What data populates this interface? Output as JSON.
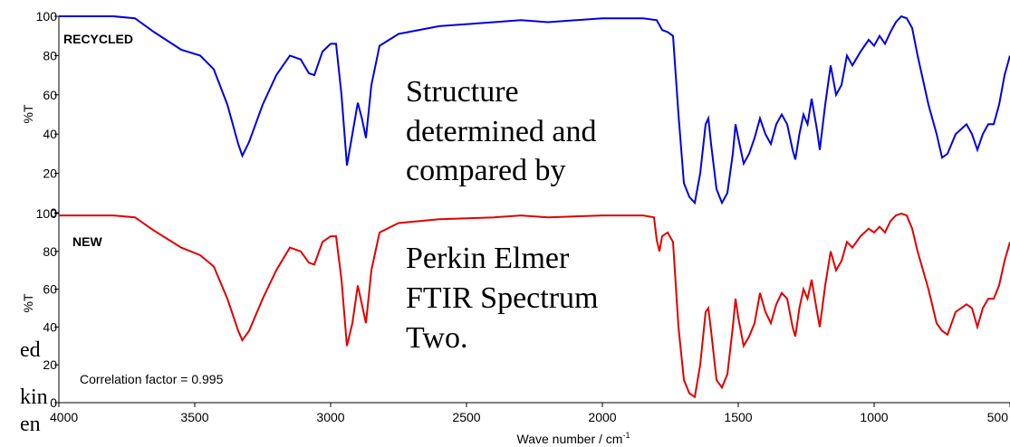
{
  "side_text": [
    "ed",
    "kin",
    "en"
  ],
  "annotation": {
    "lines_top": [
      "Structure",
      "determined and",
      "compared by"
    ],
    "lines_bottom": [
      "Perkin Elmer",
      "FTIR Spectrum",
      "Two."
    ]
  },
  "chart_data": {
    "type": "line",
    "xlabel": "Wave number / cm",
    "xlabel_sup": "-1",
    "xlim": [
      4000,
      500
    ],
    "x_ticks": [
      4000,
      3500,
      3000,
      2500,
      2000,
      1500,
      1000,
      500
    ],
    "x_tick_labels": [
      "4000",
      "3500",
      "3000",
      "2500",
      "2000",
      "1500",
      "1000",
      "500"
    ],
    "panels": [
      {
        "name": "RECYCLED",
        "ylabel": "%T",
        "ylim": [
          0,
          100
        ],
        "y_ticks": [
          0,
          20,
          40,
          60,
          80,
          100
        ],
        "y_tick_labels": [
          "0",
          "20",
          "40",
          "60",
          "80",
          "100"
        ],
        "color": "#0000e0",
        "points": [
          [
            4000,
            100
          ],
          [
            3800,
            100
          ],
          [
            3720,
            99
          ],
          [
            3650,
            92
          ],
          [
            3550,
            83
          ],
          [
            3480,
            80
          ],
          [
            3430,
            73
          ],
          [
            3380,
            55
          ],
          [
            3340,
            35
          ],
          [
            3325,
            29
          ],
          [
            3300,
            36
          ],
          [
            3250,
            55
          ],
          [
            3200,
            70
          ],
          [
            3150,
            80
          ],
          [
            3110,
            78
          ],
          [
            3080,
            71
          ],
          [
            3060,
            70
          ],
          [
            3030,
            82
          ],
          [
            3000,
            86
          ],
          [
            2980,
            86
          ],
          [
            2960,
            60
          ],
          [
            2940,
            24
          ],
          [
            2920,
            40
          ],
          [
            2900,
            56
          ],
          [
            2885,
            48
          ],
          [
            2870,
            38
          ],
          [
            2850,
            65
          ],
          [
            2820,
            85
          ],
          [
            2750,
            91
          ],
          [
            2600,
            95
          ],
          [
            2400,
            97
          ],
          [
            2300,
            98
          ],
          [
            2200,
            97
          ],
          [
            2000,
            99
          ],
          [
            1850,
            99
          ],
          [
            1800,
            98
          ],
          [
            1780,
            93
          ],
          [
            1760,
            92
          ],
          [
            1740,
            90
          ],
          [
            1720,
            50
          ],
          [
            1700,
            15
          ],
          [
            1680,
            8
          ],
          [
            1660,
            5
          ],
          [
            1640,
            20
          ],
          [
            1620,
            45
          ],
          [
            1610,
            48
          ],
          [
            1600,
            35
          ],
          [
            1580,
            12
          ],
          [
            1560,
            5
          ],
          [
            1540,
            10
          ],
          [
            1520,
            30
          ],
          [
            1510,
            45
          ],
          [
            1500,
            38
          ],
          [
            1480,
            25
          ],
          [
            1460,
            30
          ],
          [
            1440,
            38
          ],
          [
            1420,
            48
          ],
          [
            1400,
            40
          ],
          [
            1380,
            35
          ],
          [
            1360,
            45
          ],
          [
            1340,
            50
          ],
          [
            1320,
            45
          ],
          [
            1300,
            32
          ],
          [
            1290,
            27
          ],
          [
            1275,
            40
          ],
          [
            1260,
            50
          ],
          [
            1245,
            45
          ],
          [
            1230,
            58
          ],
          [
            1210,
            42
          ],
          [
            1200,
            32
          ],
          [
            1180,
            55
          ],
          [
            1160,
            75
          ],
          [
            1140,
            60
          ],
          [
            1120,
            65
          ],
          [
            1100,
            80
          ],
          [
            1080,
            75
          ],
          [
            1050,
            82
          ],
          [
            1020,
            88
          ],
          [
            1000,
            85
          ],
          [
            980,
            90
          ],
          [
            960,
            86
          ],
          [
            940,
            92
          ],
          [
            920,
            97
          ],
          [
            900,
            100
          ],
          [
            880,
            99
          ],
          [
            860,
            94
          ],
          [
            840,
            80
          ],
          [
            800,
            55
          ],
          [
            770,
            40
          ],
          [
            750,
            28
          ],
          [
            730,
            30
          ],
          [
            700,
            40
          ],
          [
            660,
            45
          ],
          [
            640,
            40
          ],
          [
            620,
            32
          ],
          [
            600,
            40
          ],
          [
            580,
            45
          ],
          [
            560,
            45
          ],
          [
            540,
            55
          ],
          [
            520,
            70
          ],
          [
            500,
            80
          ]
        ]
      },
      {
        "name": "NEW",
        "ylabel": "%T",
        "ylim": [
          0,
          100
        ],
        "y_ticks": [
          0,
          20,
          40,
          60,
          80,
          100
        ],
        "y_tick_labels": [
          "0",
          "20",
          "40",
          "60",
          "80",
          "100"
        ],
        "color": "#e00000",
        "note": "Correlation factor = 0.995",
        "points": [
          [
            4000,
            99
          ],
          [
            3800,
            99
          ],
          [
            3720,
            98
          ],
          [
            3650,
            91
          ],
          [
            3550,
            82
          ],
          [
            3480,
            78
          ],
          [
            3430,
            72
          ],
          [
            3380,
            55
          ],
          [
            3340,
            38
          ],
          [
            3325,
            33
          ],
          [
            3300,
            38
          ],
          [
            3250,
            55
          ],
          [
            3200,
            70
          ],
          [
            3150,
            82
          ],
          [
            3110,
            80
          ],
          [
            3080,
            74
          ],
          [
            3060,
            73
          ],
          [
            3030,
            85
          ],
          [
            3000,
            88
          ],
          [
            2980,
            88
          ],
          [
            2960,
            65
          ],
          [
            2940,
            30
          ],
          [
            2920,
            42
          ],
          [
            2900,
            62
          ],
          [
            2885,
            52
          ],
          [
            2870,
            42
          ],
          [
            2850,
            70
          ],
          [
            2820,
            90
          ],
          [
            2750,
            95
          ],
          [
            2600,
            97
          ],
          [
            2400,
            98
          ],
          [
            2300,
            99
          ],
          [
            2200,
            98
          ],
          [
            2000,
            99
          ],
          [
            1850,
            99
          ],
          [
            1810,
            98
          ],
          [
            1800,
            86
          ],
          [
            1790,
            80
          ],
          [
            1780,
            88
          ],
          [
            1760,
            90
          ],
          [
            1740,
            85
          ],
          [
            1720,
            40
          ],
          [
            1700,
            12
          ],
          [
            1680,
            5
          ],
          [
            1660,
            3
          ],
          [
            1640,
            20
          ],
          [
            1620,
            48
          ],
          [
            1610,
            50
          ],
          [
            1600,
            38
          ],
          [
            1580,
            12
          ],
          [
            1560,
            8
          ],
          [
            1540,
            15
          ],
          [
            1520,
            40
          ],
          [
            1510,
            55
          ],
          [
            1500,
            45
          ],
          [
            1480,
            30
          ],
          [
            1460,
            35
          ],
          [
            1440,
            42
          ],
          [
            1420,
            58
          ],
          [
            1400,
            48
          ],
          [
            1380,
            42
          ],
          [
            1360,
            52
          ],
          [
            1340,
            58
          ],
          [
            1320,
            55
          ],
          [
            1300,
            40
          ],
          [
            1290,
            35
          ],
          [
            1275,
            50
          ],
          [
            1260,
            60
          ],
          [
            1245,
            55
          ],
          [
            1230,
            65
          ],
          [
            1210,
            48
          ],
          [
            1200,
            40
          ],
          [
            1180,
            62
          ],
          [
            1160,
            80
          ],
          [
            1140,
            70
          ],
          [
            1120,
            75
          ],
          [
            1100,
            85
          ],
          [
            1080,
            82
          ],
          [
            1050,
            88
          ],
          [
            1020,
            92
          ],
          [
            1000,
            90
          ],
          [
            980,
            93
          ],
          [
            960,
            90
          ],
          [
            940,
            96
          ],
          [
            920,
            99
          ],
          [
            900,
            100
          ],
          [
            880,
            99
          ],
          [
            860,
            92
          ],
          [
            840,
            80
          ],
          [
            800,
            60
          ],
          [
            770,
            42
          ],
          [
            750,
            38
          ],
          [
            730,
            36
          ],
          [
            700,
            48
          ],
          [
            660,
            52
          ],
          [
            640,
            50
          ],
          [
            620,
            40
          ],
          [
            600,
            50
          ],
          [
            580,
            55
          ],
          [
            560,
            55
          ],
          [
            540,
            62
          ],
          [
            520,
            75
          ],
          [
            500,
            85
          ]
        ]
      }
    ]
  }
}
